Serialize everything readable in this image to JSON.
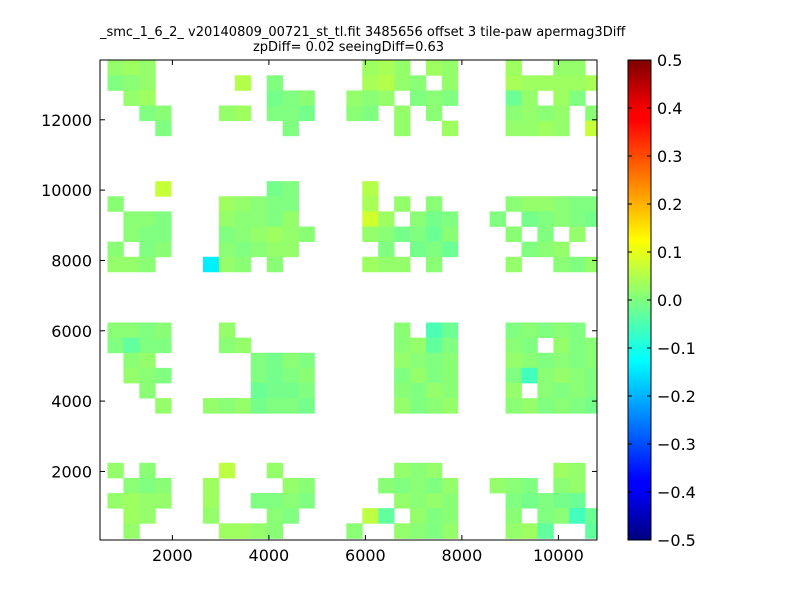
{
  "chart_data": {
    "type": "heatmap",
    "title_line1": "_smc_1_6_2_ v20140809_00721_st_tl.fit 3485656 offset 3 tile-paw apermag3Diff",
    "title_line2": "zpDiff= 0.02 seeingDiff=0.63",
    "xlabel": "",
    "ylabel": "",
    "xlim": [
      500,
      10800
    ],
    "ylim": [
      50,
      13700
    ],
    "x_ticks": [
      "2000",
      "4000",
      "6000",
      "8000",
      "10000"
    ],
    "y_ticks": [
      "2000",
      "4000",
      "6000",
      "8000",
      "10000",
      "12000"
    ],
    "colorbar": {
      "colormap": "jet",
      "range": [
        -0.5,
        0.5
      ],
      "ticks": [
        "0.5",
        "0.4",
        "0.3",
        "0.2",
        "0.1",
        "0.0",
        "−0.1",
        "−0.2",
        "−0.3",
        "−0.4",
        "−0.5"
      ]
    },
    "cell_size": [
      330,
      430
    ],
    "grid": false,
    "cells": [
      [
        820,
        13480,
        0.02
      ],
      [
        1150,
        13480,
        0.03
      ],
      [
        1480,
        13480,
        0.02
      ],
      [
        820,
        13050,
        0.0
      ],
      [
        1150,
        13050,
        0.01
      ],
      [
        1480,
        13050,
        0.02
      ],
      [
        1150,
        12620,
        0.02
      ],
      [
        1480,
        12620,
        0.03
      ],
      [
        1480,
        12190,
        0.0
      ],
      [
        1810,
        12190,
        0.01
      ],
      [
        1810,
        11760,
        0.0
      ],
      [
        3460,
        13050,
        0.05
      ],
      [
        4120,
        13050,
        0.0
      ],
      [
        4120,
        12620,
        -0.01
      ],
      [
        4450,
        12620,
        0.0
      ],
      [
        4780,
        12620,
        0.01
      ],
      [
        3130,
        12190,
        0.02
      ],
      [
        3460,
        12190,
        0.03
      ],
      [
        4120,
        12190,
        0.0
      ],
      [
        4450,
        12190,
        0.0
      ],
      [
        4780,
        12190,
        -0.01
      ],
      [
        4450,
        11760,
        0.0
      ],
      [
        6100,
        13480,
        0.03
      ],
      [
        6430,
        13480,
        0.04
      ],
      [
        6760,
        13480,
        0.02
      ],
      [
        7420,
        13480,
        0.03
      ],
      [
        7750,
        13480,
        0.02
      ],
      [
        6100,
        13050,
        0.04
      ],
      [
        6430,
        13050,
        0.05
      ],
      [
        6760,
        13050,
        0.02
      ],
      [
        7090,
        13050,
        0.01
      ],
      [
        7750,
        13050,
        0.02
      ],
      [
        5770,
        12620,
        0.02
      ],
      [
        6100,
        12620,
        0.01
      ],
      [
        6430,
        12620,
        0.02
      ],
      [
        7090,
        12620,
        0.0
      ],
      [
        7420,
        12620,
        0.01
      ],
      [
        7750,
        12620,
        0.0
      ],
      [
        5770,
        12190,
        0.01
      ],
      [
        6100,
        12190,
        0.0
      ],
      [
        6760,
        12190,
        0.02
      ],
      [
        7420,
        12190,
        0.01
      ],
      [
        6760,
        11760,
        0.02
      ],
      [
        7750,
        11760,
        0.03
      ],
      [
        9070,
        13480,
        0.03
      ],
      [
        10060,
        13480,
        0.02
      ],
      [
        10390,
        13480,
        0.02
      ],
      [
        9070,
        13050,
        0.04
      ],
      [
        9400,
        13050,
        0.03
      ],
      [
        9730,
        13050,
        0.03
      ],
      [
        10060,
        13050,
        0.03
      ],
      [
        10390,
        13050,
        0.03
      ],
      [
        10720,
        13050,
        0.04
      ],
      [
        9070,
        12620,
        -0.02
      ],
      [
        9400,
        12620,
        0.02
      ],
      [
        10060,
        12620,
        0.03
      ],
      [
        10390,
        12620,
        0.0
      ],
      [
        9070,
        12190,
        0.01
      ],
      [
        9400,
        12190,
        0.02
      ],
      [
        9730,
        12190,
        0.01
      ],
      [
        10060,
        12190,
        0.02
      ],
      [
        10720,
        12190,
        0.01
      ],
      [
        9070,
        11760,
        0.02
      ],
      [
        9400,
        11760,
        0.02
      ],
      [
        9730,
        11760,
        0.03
      ],
      [
        10060,
        11760,
        0.02
      ],
      [
        10720,
        11760,
        0.07
      ],
      [
        1810,
        10040,
        0.07
      ],
      [
        820,
        9610,
        0.01
      ],
      [
        1150,
        9180,
        0.01
      ],
      [
        1480,
        9180,
        0.01
      ],
      [
        1810,
        9180,
        0.0
      ],
      [
        1150,
        8750,
        0.01
      ],
      [
        1480,
        8750,
        0.0
      ],
      [
        1810,
        8750,
        0.0
      ],
      [
        820,
        8320,
        0.01
      ],
      [
        1480,
        8320,
        0.0
      ],
      [
        1810,
        8320,
        0.01
      ],
      [
        820,
        7890,
        0.02
      ],
      [
        1150,
        7890,
        0.02
      ],
      [
        1480,
        7890,
        0.01
      ],
      [
        4120,
        10040,
        -0.01
      ],
      [
        4450,
        10040,
        0.0
      ],
      [
        3130,
        9610,
        0.03
      ],
      [
        3460,
        9610,
        0.02
      ],
      [
        3790,
        9610,
        0.01
      ],
      [
        4120,
        9610,
        0.0
      ],
      [
        4450,
        9610,
        0.0
      ],
      [
        3130,
        9180,
        0.02
      ],
      [
        3460,
        9180,
        0.01
      ],
      [
        3790,
        9180,
        0.01
      ],
      [
        4120,
        9180,
        0.0
      ],
      [
        4450,
        9180,
        0.02
      ],
      [
        3130,
        8750,
        0.0
      ],
      [
        3460,
        8750,
        0.01
      ],
      [
        3790,
        8750,
        0.02
      ],
      [
        4120,
        8750,
        0.03
      ],
      [
        4450,
        8750,
        0.02
      ],
      [
        4780,
        8750,
        0.01
      ],
      [
        3130,
        8320,
        0.01
      ],
      [
        3460,
        8320,
        0.0
      ],
      [
        3790,
        8320,
        0.01
      ],
      [
        4120,
        8320,
        0.02
      ],
      [
        4450,
        8320,
        0.02
      ],
      [
        2800,
        7890,
        -0.14
      ],
      [
        3130,
        7890,
        0.02
      ],
      [
        3460,
        7890,
        0.01
      ],
      [
        4120,
        7890,
        0.01
      ],
      [
        6100,
        10040,
        0.05
      ],
      [
        6100,
        9610,
        0.04
      ],
      [
        6760,
        9610,
        0.02
      ],
      [
        7420,
        9610,
        0.01
      ],
      [
        6100,
        9180,
        0.08
      ],
      [
        6430,
        9180,
        0.03
      ],
      [
        7090,
        9180,
        0.01
      ],
      [
        7420,
        9180,
        -0.01
      ],
      [
        7750,
        9180,
        0.0
      ],
      [
        6100,
        8750,
        0.02
      ],
      [
        6430,
        8750,
        0.01
      ],
      [
        6760,
        8750,
        -0.01
      ],
      [
        7090,
        8750,
        0.0
      ],
      [
        7420,
        8750,
        -0.02
      ],
      [
        7750,
        8750,
        0.01
      ],
      [
        6430,
        8320,
        0.0
      ],
      [
        7090,
        8320,
        -0.01
      ],
      [
        7420,
        8320,
        0.0
      ],
      [
        7750,
        8320,
        -0.02
      ],
      [
        6100,
        7890,
        0.03
      ],
      [
        6430,
        7890,
        0.02
      ],
      [
        6760,
        7890,
        0.02
      ],
      [
        7420,
        7890,
        0.01
      ],
      [
        9070,
        9610,
        0.01
      ],
      [
        9400,
        9610,
        0.02
      ],
      [
        9730,
        9610,
        0.02
      ],
      [
        10060,
        9610,
        0.01
      ],
      [
        10390,
        9610,
        0.0
      ],
      [
        10720,
        9610,
        0.0
      ],
      [
        8740,
        9180,
        0.0
      ],
      [
        9400,
        9180,
        -0.01
      ],
      [
        9730,
        9180,
        0.0
      ],
      [
        10060,
        9180,
        0.01
      ],
      [
        10390,
        9180,
        0.0
      ],
      [
        10720,
        9180,
        -0.01
      ],
      [
        9070,
        8750,
        0.01
      ],
      [
        9730,
        8750,
        0.0
      ],
      [
        10390,
        8750,
        0.02
      ],
      [
        9400,
        8320,
        0.0
      ],
      [
        9730,
        8320,
        0.01
      ],
      [
        10060,
        8320,
        0.02
      ],
      [
        9070,
        7890,
        0.02
      ],
      [
        10060,
        7890,
        0.01
      ],
      [
        10390,
        7890,
        0.0
      ],
      [
        10720,
        7890,
        0.02
      ],
      [
        820,
        6020,
        0.01
      ],
      [
        1150,
        6020,
        0.01
      ],
      [
        1480,
        6020,
        0.0
      ],
      [
        1810,
        6020,
        0.01
      ],
      [
        820,
        5590,
        0.0
      ],
      [
        1150,
        5590,
        -0.03
      ],
      [
        1480,
        5590,
        0.0
      ],
      [
        1810,
        5590,
        0.0
      ],
      [
        1150,
        5160,
        0.01
      ],
      [
        1480,
        5160,
        0.02
      ],
      [
        1150,
        4730,
        0.02
      ],
      [
        1480,
        4730,
        0.01
      ],
      [
        1810,
        4730,
        0.0
      ],
      [
        1480,
        4300,
        0.01
      ],
      [
        1810,
        3870,
        0.02
      ],
      [
        3130,
        6020,
        0.02
      ],
      [
        3130,
        5590,
        0.01
      ],
      [
        3460,
        5590,
        0.02
      ],
      [
        3790,
        5160,
        0.0
      ],
      [
        4120,
        5160,
        -0.01
      ],
      [
        4450,
        5160,
        0.01
      ],
      [
        4780,
        5160,
        0.0
      ],
      [
        3790,
        4730,
        0.0
      ],
      [
        4120,
        4730,
        -0.01
      ],
      [
        4450,
        4730,
        0.0
      ],
      [
        4780,
        4730,
        0.01
      ],
      [
        3790,
        4300,
        -0.02
      ],
      [
        4120,
        4300,
        -0.01
      ],
      [
        4450,
        4300,
        -0.01
      ],
      [
        4780,
        4300,
        0.0
      ],
      [
        2800,
        3870,
        0.02
      ],
      [
        3130,
        3870,
        0.01
      ],
      [
        3460,
        3870,
        0.02
      ],
      [
        3790,
        3870,
        -0.01
      ],
      [
        4120,
        3870,
        0.0
      ],
      [
        4450,
        3870,
        0.0
      ],
      [
        4780,
        3870,
        -0.01
      ],
      [
        6760,
        6020,
        0.01
      ],
      [
        7420,
        6020,
        -0.05
      ],
      [
        7750,
        6020,
        -0.02
      ],
      [
        6760,
        5590,
        0.01
      ],
      [
        7090,
        5590,
        0.02
      ],
      [
        7420,
        5590,
        -0.03
      ],
      [
        7750,
        5590,
        0.0
      ],
      [
        6760,
        5160,
        0.02
      ],
      [
        7090,
        5160,
        0.01
      ],
      [
        7420,
        5160,
        0.0
      ],
      [
        7750,
        5160,
        0.01
      ],
      [
        6760,
        4730,
        0.0
      ],
      [
        7090,
        4730,
        0.02
      ],
      [
        7420,
        4730,
        0.0
      ],
      [
        7750,
        4730,
        0.01
      ],
      [
        6760,
        4300,
        0.01
      ],
      [
        7090,
        4300,
        0.0
      ],
      [
        7420,
        4300,
        0.02
      ],
      [
        7750,
        4300,
        0.01
      ],
      [
        6760,
        3870,
        0.02
      ],
      [
        7090,
        3870,
        0.0
      ],
      [
        7420,
        3870,
        0.01
      ],
      [
        7750,
        3870,
        0.02
      ],
      [
        9070,
        6020,
        0.0
      ],
      [
        9400,
        6020,
        0.01
      ],
      [
        9730,
        6020,
        0.0
      ],
      [
        10060,
        6020,
        0.01
      ],
      [
        10390,
        6020,
        0.0
      ],
      [
        9070,
        5590,
        0.01
      ],
      [
        9400,
        5590,
        0.0
      ],
      [
        10060,
        5590,
        0.02
      ],
      [
        10390,
        5590,
        0.0
      ],
      [
        10720,
        5590,
        0.01
      ],
      [
        9070,
        5160,
        0.02
      ],
      [
        9400,
        5160,
        0.01
      ],
      [
        9730,
        5160,
        0.0
      ],
      [
        10060,
        5160,
        0.01
      ],
      [
        10390,
        5160,
        0.0
      ],
      [
        10720,
        5160,
        0.01
      ],
      [
        9070,
        4730,
        0.0
      ],
      [
        9400,
        4730,
        -0.06
      ],
      [
        9730,
        4730,
        0.01
      ],
      [
        10060,
        4730,
        0.02
      ],
      [
        10390,
        4730,
        0.01
      ],
      [
        10720,
        4730,
        0.0
      ],
      [
        9070,
        4300,
        0.02
      ],
      [
        9730,
        4300,
        0.01
      ],
      [
        10060,
        4300,
        0.0
      ],
      [
        10390,
        4300,
        0.01
      ],
      [
        10720,
        4300,
        0.0
      ],
      [
        9070,
        3870,
        0.01
      ],
      [
        9400,
        3870,
        0.02
      ],
      [
        9730,
        3870,
        0.0
      ],
      [
        10060,
        3870,
        0.01
      ],
      [
        10390,
        3870,
        0.0
      ],
      [
        10720,
        3870,
        -0.01
      ],
      [
        820,
        2030,
        0.02
      ],
      [
        1480,
        2030,
        0.01
      ],
      [
        1150,
        1600,
        0.01
      ],
      [
        1480,
        1600,
        0.0
      ],
      [
        1810,
        1600,
        0.01
      ],
      [
        820,
        1170,
        0.02
      ],
      [
        1150,
        1170,
        0.03
      ],
      [
        1480,
        1170,
        0.02
      ],
      [
        1810,
        1170,
        0.02
      ],
      [
        1150,
        740,
        0.03
      ],
      [
        1480,
        740,
        0.02
      ],
      [
        1150,
        310,
        0.02
      ],
      [
        3130,
        2030,
        0.06
      ],
      [
        4120,
        2030,
        0.02
      ],
      [
        2800,
        1600,
        0.03
      ],
      [
        4450,
        1600,
        0.02
      ],
      [
        4780,
        1600,
        0.01
      ],
      [
        2800,
        1170,
        0.03
      ],
      [
        3790,
        1170,
        0.0
      ],
      [
        4120,
        1170,
        0.0
      ],
      [
        4450,
        1170,
        0.01
      ],
      [
        4780,
        1170,
        0.0
      ],
      [
        2800,
        740,
        0.02
      ],
      [
        4120,
        740,
        0.01
      ],
      [
        4450,
        740,
        0.0
      ],
      [
        3130,
        310,
        0.03
      ],
      [
        3460,
        310,
        0.03
      ],
      [
        3790,
        310,
        0.02
      ],
      [
        4120,
        310,
        0.01
      ],
      [
        6760,
        2030,
        0.02
      ],
      [
        7090,
        2030,
        0.01
      ],
      [
        7420,
        2030,
        0.02
      ],
      [
        6430,
        1600,
        0.01
      ],
      [
        6760,
        1600,
        0.0
      ],
      [
        7090,
        1600,
        0.01
      ],
      [
        7420,
        1600,
        0.0
      ],
      [
        7750,
        1600,
        0.02
      ],
      [
        6760,
        1170,
        0.02
      ],
      [
        7090,
        1170,
        0.01
      ],
      [
        7420,
        1170,
        0.02
      ],
      [
        7750,
        1170,
        0.01
      ],
      [
        6100,
        740,
        0.06
      ],
      [
        6430,
        740,
        -0.03
      ],
      [
        7090,
        740,
        0.02
      ],
      [
        7420,
        740,
        0.0
      ],
      [
        7750,
        740,
        0.01
      ],
      [
        5770,
        310,
        0.01
      ],
      [
        6760,
        310,
        0.02
      ],
      [
        7090,
        310,
        0.01
      ],
      [
        7420,
        310,
        0.0
      ],
      [
        7750,
        310,
        0.02
      ],
      [
        10060,
        2030,
        0.03
      ],
      [
        10390,
        2030,
        0.02
      ],
      [
        8740,
        1600,
        0.02
      ],
      [
        9070,
        1600,
        0.01
      ],
      [
        9400,
        1600,
        0.0
      ],
      [
        10060,
        1600,
        0.01
      ],
      [
        10390,
        1600,
        0.02
      ],
      [
        9070,
        1170,
        0.0
      ],
      [
        9400,
        1170,
        -0.01
      ],
      [
        9730,
        1170,
        0.0
      ],
      [
        10060,
        1170,
        -0.01
      ],
      [
        10390,
        1170,
        -0.02
      ],
      [
        9070,
        740,
        0.01
      ],
      [
        9730,
        740,
        0.0
      ],
      [
        10060,
        740,
        0.01
      ],
      [
        10390,
        740,
        -0.06
      ],
      [
        10720,
        740,
        -0.02
      ],
      [
        9070,
        310,
        0.02
      ],
      [
        9400,
        310,
        0.03
      ],
      [
        9730,
        310,
        -0.03
      ],
      [
        10720,
        310,
        -0.03
      ]
    ]
  }
}
